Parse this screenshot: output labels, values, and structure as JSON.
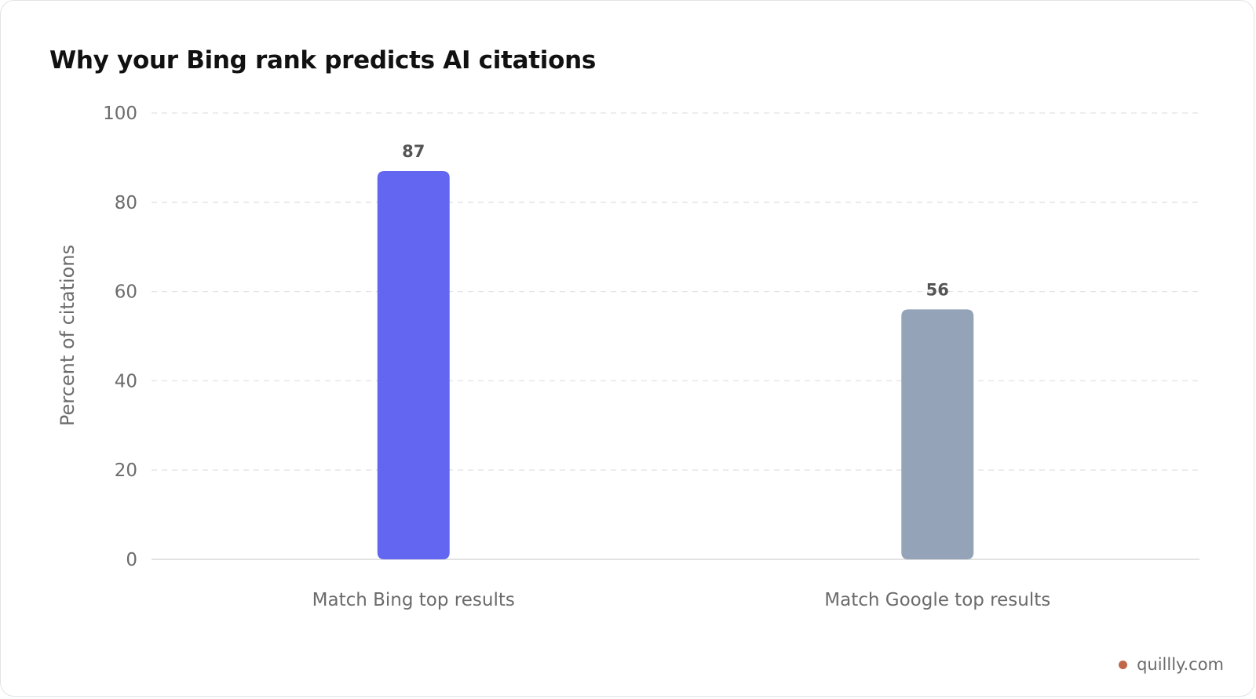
{
  "chart_data": {
    "type": "bar",
    "title": "Why your Bing rank predicts AI citations",
    "xlabel": "",
    "ylabel": "Percent of citations",
    "categories": [
      "Match Bing top results",
      "Match Google top results"
    ],
    "values": [
      87,
      56
    ],
    "data_labels": [
      "87",
      "56"
    ],
    "bar_colors": [
      "#6366f1",
      "#94a3b8"
    ],
    "ylim": [
      0,
      100
    ],
    "yticks": [
      0,
      20,
      40,
      60,
      80,
      100
    ],
    "ytick_labels": [
      "0",
      "20",
      "40",
      "60",
      "80",
      "100"
    ],
    "grid": true,
    "legend": "none"
  },
  "watermark": {
    "text": "quillly.com",
    "dot_color": "#c0674a"
  }
}
